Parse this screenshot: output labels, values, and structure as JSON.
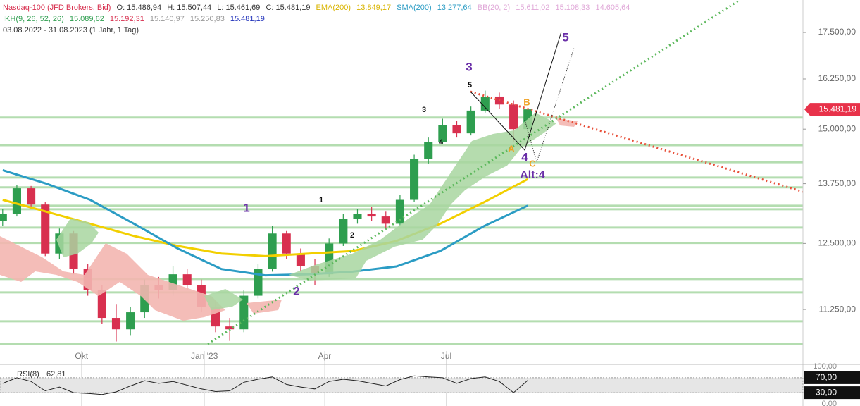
{
  "chart_data": {
    "type": "candlestick",
    "header": {
      "instrument": "Nasdaq-100 (JFD Brokers, Bid)",
      "open": "O: 15.486,94",
      "high": "H: 15.507,44",
      "low": "L: 15.461,69",
      "close": "C: 15.481,19",
      "ema_name": "EMA(200)",
      "ema_value": "13.849,17",
      "sma_name": "SMA(200)",
      "sma_value": "13.277,64",
      "bb_name": "BB(20, 2)",
      "bb_values": [
        "15.611,02",
        "15.108,33",
        "14.605,64"
      ],
      "ikh_name": "IKH(9, 26, 52, 26)",
      "ikh_values": [
        "15.089,62",
        "15.192,31",
        "15.140,97",
        "15.250,83",
        "15.481,19"
      ],
      "period": "03.08.2022 - 31.08.2023 (1 Jahr, 1 Tag)"
    },
    "log_scale": true,
    "xlim": [
      "2022-08-01",
      "2024-03-24"
    ],
    "xticks": [
      {
        "value": "2022-10-01",
        "label": "Okt"
      },
      {
        "value": "2023-01-01",
        "label": "Jan '23"
      },
      {
        "value": "2023-04-01",
        "label": "Apr"
      },
      {
        "value": "2023-07-01",
        "label": "Jul"
      }
    ],
    "ylim": [
      10330,
      18430
    ],
    "yticks": [
      {
        "value": 11250,
        "label": "11.250,00"
      },
      {
        "value": 12500,
        "label": "12.500,00"
      },
      {
        "value": 13750,
        "label": "13.750,00"
      },
      {
        "value": 15000,
        "label": "15.000,00"
      },
      {
        "value": 16250,
        "label": "16.250,00"
      },
      {
        "value": 17500,
        "label": "17.500,00"
      }
    ],
    "up_color": "#2e9e4f",
    "down_color": "#d8304f",
    "open": [
      12950,
      13100,
      13650,
      13300,
      12300,
      12700,
      12000,
      11600,
      11100,
      10900,
      11200,
      11700,
      11600,
      11900,
      11700,
      11300,
      10950,
      10900,
      11500,
      12000,
      12700,
      12300,
      12050,
      11900,
      12500,
      13000,
      13100,
      13050,
      12900,
      13400,
      14300,
      14700,
      15100,
      14900,
      15450,
      15800,
      15600,
      15000
    ],
    "high": [
      13200,
      13720,
      13700,
      13350,
      12800,
      12750,
      12100,
      11700,
      11350,
      11300,
      11800,
      11850,
      12050,
      12000,
      11800,
      11400,
      11100,
      11600,
      12100,
      12850,
      12750,
      12400,
      12200,
      12600,
      13100,
      13200,
      13250,
      13150,
      13500,
      14400,
      14800,
      15250,
      15200,
      15550,
      15950,
      15900,
      15700,
      15507
    ],
    "low": [
      12850,
      13050,
      13200,
      12250,
      12200,
      11900,
      11500,
      11000,
      10690,
      10800,
      11100,
      11450,
      11500,
      11600,
      11200,
      10850,
      10700,
      10850,
      11450,
      11950,
      12200,
      11950,
      11700,
      11850,
      12450,
      12900,
      12950,
      12800,
      12850,
      13350,
      14200,
      14650,
      14800,
      14850,
      15400,
      15500,
      14700,
      14900
    ],
    "close": [
      13100,
      13650,
      13300,
      12300,
      12700,
      12000,
      11600,
      11100,
      10900,
      11200,
      11700,
      11600,
      11900,
      11700,
      11300,
      10950,
      10900,
      11500,
      12000,
      12700,
      12300,
      12050,
      11900,
      12500,
      13000,
      13100,
      13050,
      12900,
      13400,
      14300,
      14700,
      15100,
      14900,
      15450,
      15800,
      15600,
      15000,
      15481
    ],
    "series": [
      {
        "name": "EMA(200)",
        "color": "#f2cf00",
        "values": [
          13400,
          13150,
          12900,
          12650,
          12450,
          12300,
          12250,
          12300,
          12350,
          12550,
          12900,
          13350,
          13849
        ]
      },
      {
        "name": "SMA(200)",
        "color": "#2b9cc4",
        "values": [
          14050,
          13750,
          13400,
          12900,
          12400,
          12000,
          11880,
          11900,
          11950,
          12050,
          12350,
          12850,
          13277
        ]
      }
    ],
    "levels": [
      15280,
      14620,
      14230,
      13885,
      13670,
      13275,
      13200,
      12820,
      12510,
      11810,
      11560,
      11040,
      10650
    ],
    "level_color": "#b4ddb0",
    "price_tag": "15.481,19",
    "annotations": [
      "1",
      "2",
      "3",
      "4",
      "5",
      "Alt:4",
      "A",
      "B",
      "C",
      "1",
      "2",
      "3",
      "4",
      "5"
    ],
    "rsi": {
      "name": "RSI(8)",
      "value_label": "62,81",
      "color": "#222222",
      "ylim": [
        0,
        100
      ],
      "yticks": [
        {
          "value": 0,
          "label": "0,00"
        },
        {
          "value": 30,
          "label": "30,00"
        },
        {
          "value": 70,
          "label": "70,00"
        },
        {
          "value": 100,
          "label": "100,00"
        }
      ],
      "values": [
        55,
        70,
        60,
        35,
        45,
        30,
        28,
        25,
        32,
        48,
        62,
        55,
        60,
        50,
        40,
        33,
        35,
        58,
        66,
        72,
        52,
        45,
        40,
        60,
        66,
        62,
        55,
        48,
        65,
        75,
        72,
        70,
        55,
        68,
        72,
        60,
        30,
        63
      ]
    }
  }
}
